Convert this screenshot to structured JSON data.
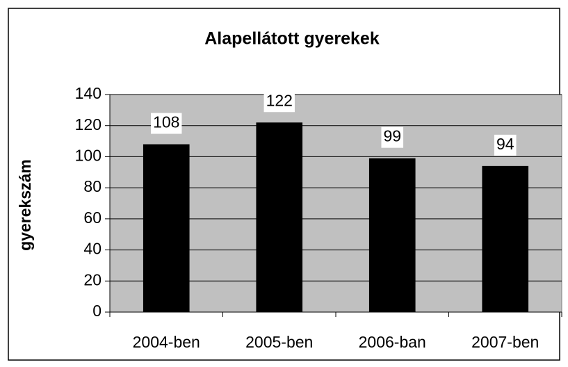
{
  "chart_data": {
    "type": "bar",
    "title": "Alapellátott gyerekek",
    "y_label": "gyerekszám",
    "categories": [
      "2004-ben",
      "2005-ben",
      "2006-ban",
      "2007-ben"
    ],
    "values": [
      108,
      122,
      99,
      94
    ],
    "color": "#000000",
    "plot_background": "#c0c0c0",
    "ylim": [
      0,
      140
    ],
    "yticks": [
      0,
      20,
      40,
      60,
      80,
      100,
      120,
      140
    ],
    "grid": true,
    "data_labels": true
  }
}
